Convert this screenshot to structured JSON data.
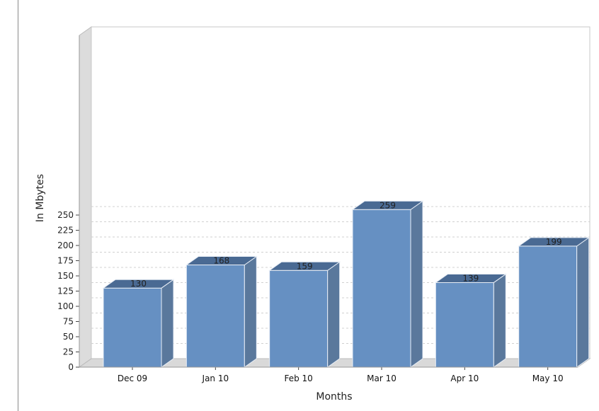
{
  "chart_data": {
    "type": "bar",
    "categories": [
      "Dec 09",
      "Jan 10",
      "Feb 10",
      "Mar 10",
      "Apr 10",
      "May 10"
    ],
    "values": [
      130,
      168,
      159,
      259,
      139,
      199
    ],
    "data_labels": [
      "130",
      "168",
      "159",
      "259",
      "139",
      "199"
    ],
    "xlabel": "Months",
    "ylabel": "In Mbytes",
    "ylim": [
      0,
      250
    ],
    "yticks": [
      0,
      25,
      50,
      75,
      100,
      125,
      150,
      175,
      200,
      225,
      250
    ],
    "grid": true,
    "style": "3d",
    "colors": {
      "bar_front": "#6690C2",
      "bar_top": "#4A6A93",
      "bar_side": "#5A789C",
      "floor": "#D9D9D9",
      "grid": "#D0D0D0"
    }
  }
}
